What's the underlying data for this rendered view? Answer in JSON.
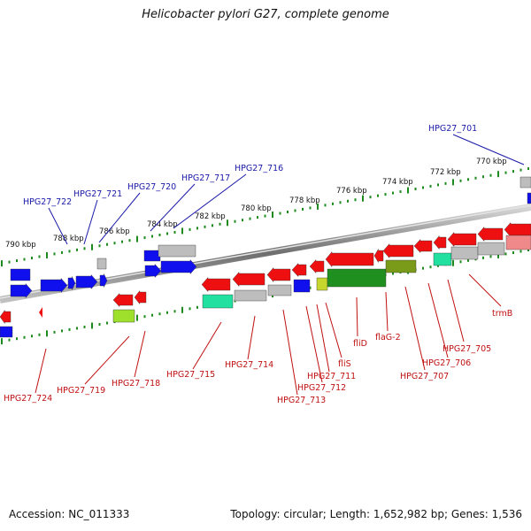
{
  "title": "Helicobacter pylori G27, complete genome",
  "footer": {
    "accession": "Accession: NC_011333",
    "topology": "Topology: circular; Length: 1,652,982 bp; Genes: 1,536"
  },
  "colors": {
    "forward_gene": "#1010ee",
    "reverse_gene": "#ee1010",
    "tick": "#1c8a1c",
    "backbone": "#8a8a8a",
    "label_forward": "#1a1aa8",
    "label_reverse": "#c01010"
  },
  "scale_labels": [
    "790 kbp",
    "788 kbp",
    "786 kbp",
    "784 kbp",
    "782 kbp",
    "780 kbp",
    "778 kbp",
    "776 kbp",
    "774 kbp",
    "772 kbp",
    "770 kbp"
  ],
  "forward_gene_labels": [
    "HPG27_722",
    "HPG27_721",
    "HPG27_720",
    "HPG27_717",
    "HPG27_716",
    "HPG27_701"
  ],
  "reverse_gene_labels": [
    "HPG27_724",
    "HPG27_719",
    "HPG27_718",
    "HPG27_715",
    "HPG27_714",
    "HPG27_713",
    "HPG27_712",
    "HPG27_711",
    "fliS",
    "fliD",
    "flaG-2",
    "HPG27_707",
    "HPG27_706",
    "HPG27_705",
    "trmB"
  ]
}
